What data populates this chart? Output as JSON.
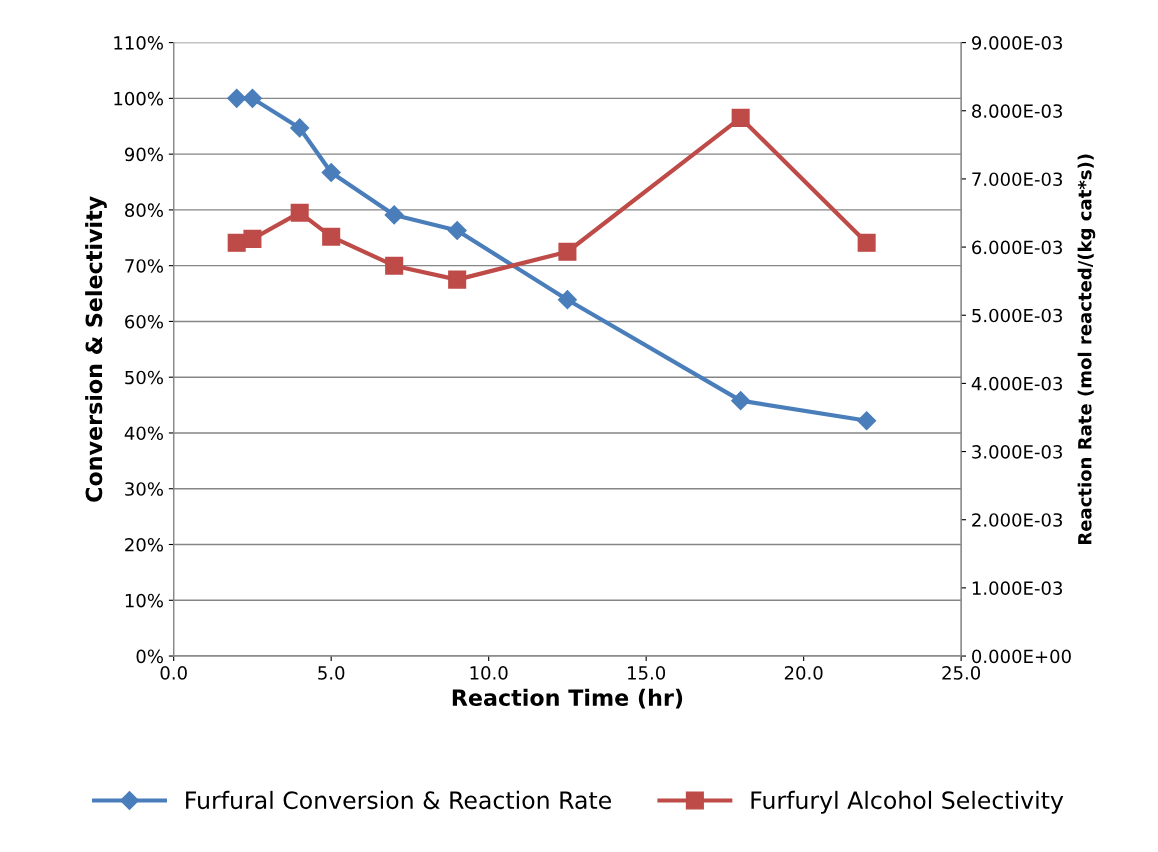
{
  "chart_data": {
    "type": "line",
    "xlabel": "Reaction Time (hr)",
    "ylabel": "Conversion & Selectivity",
    "y2label": "Reaction Rate (mol reacted/(kg cat*s))",
    "x": [
      2,
      2.5,
      4,
      5,
      7,
      9,
      12.5,
      18,
      22
    ],
    "series": [
      {
        "name": "Furfural Conversion & Reaction Rate",
        "color": "#4a7ebb",
        "marker": "diamond",
        "values": [
          100,
          100,
          94.7,
          86.7,
          79.1,
          76.3,
          63.9,
          45.8,
          42.2
        ]
      },
      {
        "name": "Furfuryl Alcohol Selectivity",
        "color": "#be4b48",
        "marker": "square",
        "values": [
          74.1,
          74.8,
          79.5,
          75.2,
          70.0,
          67.5,
          72.5,
          96.5,
          74.1
        ]
      }
    ],
    "xlim": [
      0,
      25
    ],
    "xticks": [
      {
        "value": 0,
        "label": "0.0"
      },
      {
        "value": 5,
        "label": "5.0"
      },
      {
        "value": 10,
        "label": "10.0"
      },
      {
        "value": 15,
        "label": "15.0"
      },
      {
        "value": 20,
        "label": "20.0"
      },
      {
        "value": 25,
        "label": "25.0"
      }
    ],
    "ylim": [
      0,
      110
    ],
    "yticks": [
      {
        "value": 0,
        "label": "0%"
      },
      {
        "value": 10,
        "label": "10%"
      },
      {
        "value": 20,
        "label": "20%"
      },
      {
        "value": 30,
        "label": "30%"
      },
      {
        "value": 40,
        "label": "40%"
      },
      {
        "value": 50,
        "label": "50%"
      },
      {
        "value": 60,
        "label": "60%"
      },
      {
        "value": 70,
        "label": "70%"
      },
      {
        "value": 80,
        "label": "80%"
      },
      {
        "value": 90,
        "label": "90%"
      },
      {
        "value": 100,
        "label": "100%"
      },
      {
        "value": 110,
        "label": "110%"
      }
    ],
    "y2lim": [
      0,
      0.009
    ],
    "y2ticks": [
      {
        "value": 0,
        "label": "0.000E+00"
      },
      {
        "value": 0.001,
        "label": "1.000E-03"
      },
      {
        "value": 0.002,
        "label": "2.000E-03"
      },
      {
        "value": 0.003,
        "label": "3.000E-03"
      },
      {
        "value": 0.004,
        "label": "4.000E-03"
      },
      {
        "value": 0.005,
        "label": "5.000E-03"
      },
      {
        "value": 0.006,
        "label": "6.000E-03"
      },
      {
        "value": 0.007,
        "label": "7.000E-03"
      },
      {
        "value": 0.008,
        "label": "8.000E-03"
      },
      {
        "value": 0.009,
        "label": "9.000E-03"
      }
    ],
    "grid": "y",
    "legend": "bottom",
    "line_style": "solid"
  }
}
